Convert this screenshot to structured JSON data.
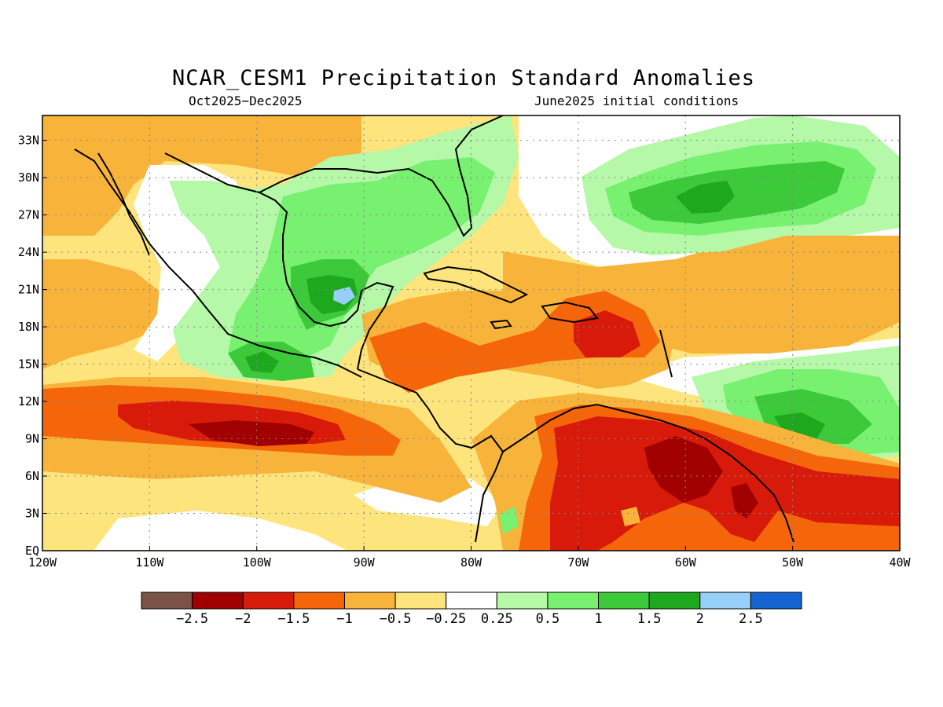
{
  "title": "NCAR_CESM1 Precipitation Standard Anomalies",
  "subtitle_left": "Oct2025−Dec2025",
  "subtitle_right": "June2025 initial conditions",
  "map": {
    "lon_range": [
      -120,
      -40
    ],
    "lat_range": [
      0,
      35
    ],
    "gridlines": "dotted",
    "lat_ticks": [
      "33N",
      "30N",
      "27N",
      "24N",
      "21N",
      "18N",
      "15N",
      "12N",
      "9N",
      "6N",
      "3N",
      "EQ"
    ],
    "lon_ticks": [
      "120W",
      "110W",
      "100W",
      "90W",
      "80W",
      "70W",
      "60W",
      "50W",
      "40W"
    ]
  },
  "colorbar": {
    "colors": [
      "#7a5248",
      "#a00000",
      "#d81a0a",
      "#f5660a",
      "#f8b43a",
      "#fde47c",
      "#ffffff",
      "#b4f8a8",
      "#78f070",
      "#3cc93a",
      "#1ea81e",
      "#96d0f8",
      "#1464d2"
    ],
    "labels": [
      "−2.5",
      "−2",
      "−1.5",
      "−1",
      "−0.5",
      "−0.25",
      "0.25",
      "0.5",
      "1",
      "1.5",
      "2",
      "2.5"
    ]
  }
}
